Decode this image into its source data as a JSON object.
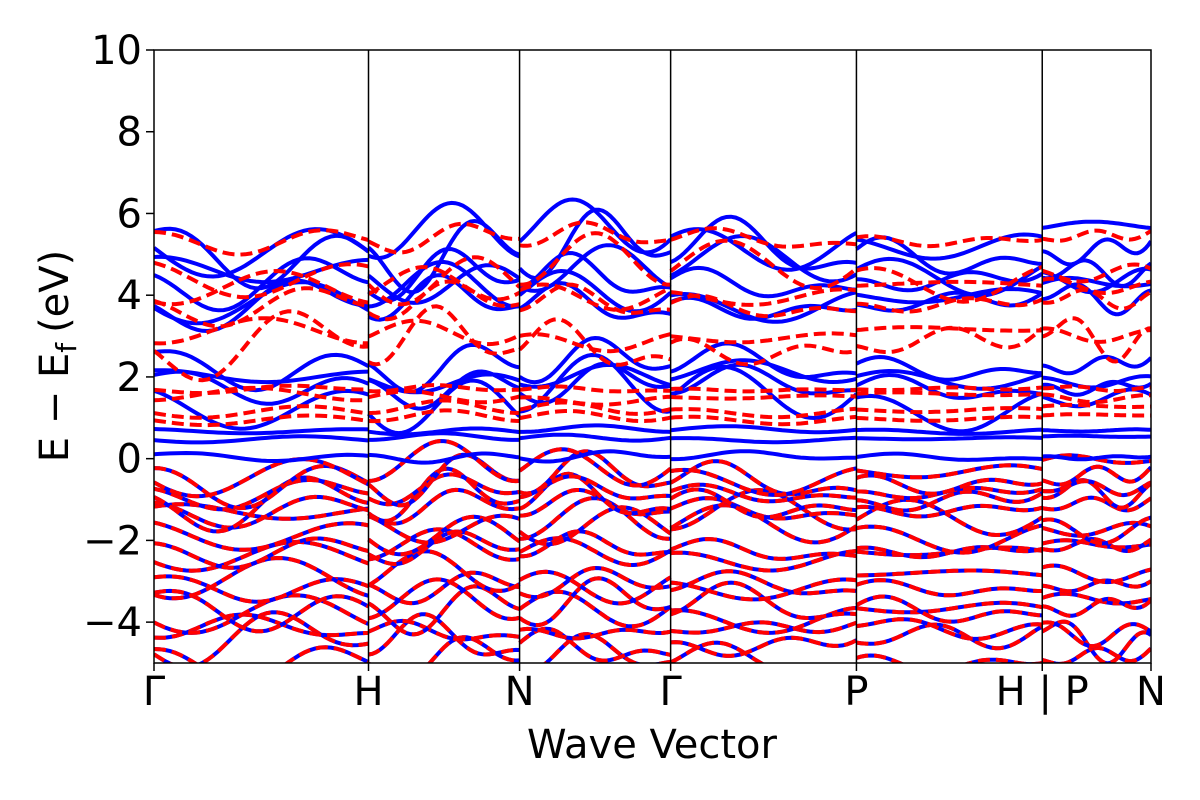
{
  "chart_data": {
    "type": "line",
    "title": "",
    "xlabel": "Wave Vector",
    "ylabel": "E − Ef (eV)",
    "ylabel_parts": {
      "main": "E − E",
      "sub": "f",
      "unit": "(eV)"
    },
    "ylim": [
      -5,
      10
    ],
    "yticks": [
      -4,
      -2,
      0,
      2,
      4,
      6,
      8,
      10
    ],
    "ytick_labels": [
      "−4",
      "−2",
      "0",
      "2",
      "4",
      "6",
      "8",
      "10"
    ],
    "xlim": [
      0,
      6.6
    ],
    "kpoints": [
      {
        "label": "Γ",
        "x": 0.0
      },
      {
        "label": "H",
        "x": 1.42
      },
      {
        "label": "N",
        "x": 2.42
      },
      {
        "label": "Γ",
        "x": 3.42
      },
      {
        "label": "P",
        "x": 4.65
      },
      {
        "label": "H | P",
        "x": 5.88
      },
      {
        "label": "N",
        "x": 6.6
      }
    ],
    "grid": false,
    "legend": "none",
    "series": [
      {
        "style": "solid",
        "color": "#0000ff"
      },
      {
        "style": "dashed",
        "color": "#ff0000"
      }
    ],
    "band_energies_at_gamma_spin_up": [
      -4.9,
      -4.5,
      -4.2,
      -3.7,
      -3.6,
      -3.1,
      -3.0,
      -2.3,
      -2.2,
      -1.7,
      -1.5,
      -1.2,
      -1.0,
      -0.8,
      -0.5,
      -0.3,
      0.05,
      0.5,
      0.7,
      1.5,
      1.8,
      2.0,
      2.3,
      3.8,
      4.0,
      4.4,
      4.6,
      5.1,
      5.4
    ],
    "band_energies_at_gamma_spin_down": [
      -4.9,
      -4.5,
      -4.2,
      -3.7,
      -3.6,
      -3.1,
      -3.0,
      -2.3,
      -2.2,
      -1.7,
      -1.5,
      -1.2,
      -1.0,
      -0.8,
      -0.5,
      -0.3,
      1.0,
      1.2,
      1.5,
      1.7,
      2.8,
      3.0,
      3.8,
      4.1,
      4.6,
      5.4
    ]
  }
}
